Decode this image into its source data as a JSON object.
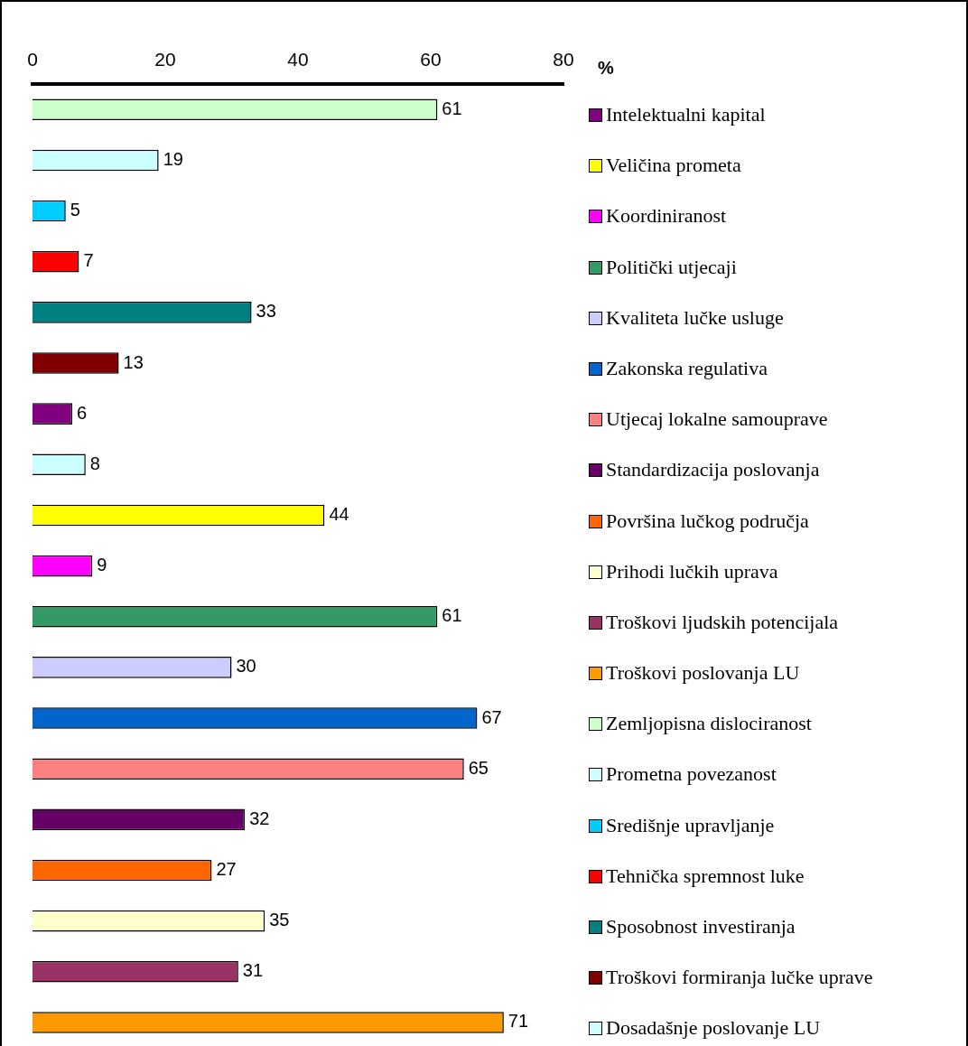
{
  "chart_data": {
    "type": "bar",
    "orientation": "horizontal",
    "stacked": true,
    "xlabel": "%",
    "xlim": [
      0,
      80
    ],
    "xticks": [
      0,
      20,
      40,
      60,
      80
    ],
    "grid": false,
    "legend": "right",
    "data_labels": true,
    "categories": [
      null,
      null,
      null,
      null,
      null,
      null,
      null,
      null,
      null,
      null,
      null,
      null,
      null,
      null,
      null,
      null,
      null,
      null,
      null
    ],
    "series": [
      {
        "name": "Intelektualni kapital",
        "color": "#800080",
        "values": [
          null,
          null,
          null,
          null,
          null,
          null,
          6,
          null,
          null,
          null,
          null,
          null,
          null,
          null,
          null,
          null,
          null,
          null,
          null
        ]
      },
      {
        "name": "Veličina prometa",
        "color": "#ffff00",
        "values": [
          null,
          null,
          null,
          null,
          null,
          null,
          null,
          null,
          44,
          null,
          null,
          null,
          null,
          null,
          null,
          null,
          null,
          null,
          null
        ]
      },
      {
        "name": "Koordiniranost",
        "color": "#ff00ff",
        "values": [
          null,
          null,
          null,
          null,
          null,
          null,
          null,
          null,
          null,
          9,
          null,
          null,
          null,
          null,
          null,
          null,
          null,
          null,
          null
        ]
      },
      {
        "name": "Politički utjecaji",
        "color": "#339966",
        "values": [
          null,
          null,
          null,
          null,
          null,
          null,
          null,
          null,
          null,
          null,
          61,
          null,
          null,
          null,
          null,
          null,
          null,
          null,
          null
        ]
      },
      {
        "name": "Kvaliteta lučke usluge",
        "color": "#ccccff",
        "values": [
          null,
          null,
          null,
          null,
          null,
          null,
          null,
          null,
          null,
          null,
          null,
          30,
          null,
          null,
          null,
          null,
          null,
          null,
          null
        ]
      },
      {
        "name": "Zakonska regulativa",
        "color": "#0066cc",
        "values": [
          null,
          null,
          null,
          null,
          null,
          null,
          null,
          null,
          null,
          null,
          null,
          null,
          67,
          null,
          null,
          null,
          null,
          null,
          null
        ]
      },
      {
        "name": "Utjecaj lokalne samouprave",
        "color": "#ff8080",
        "values": [
          null,
          null,
          null,
          null,
          null,
          null,
          null,
          null,
          null,
          null,
          null,
          null,
          null,
          65,
          null,
          null,
          null,
          null,
          null
        ]
      },
      {
        "name": "Standardizacija poslovanja",
        "color": "#660066",
        "values": [
          null,
          null,
          null,
          null,
          null,
          null,
          null,
          null,
          null,
          null,
          null,
          null,
          null,
          null,
          32,
          null,
          null,
          null,
          null
        ]
      },
      {
        "name": "Površina lučkog područja",
        "color": "#ff6600",
        "values": [
          null,
          null,
          null,
          null,
          null,
          null,
          null,
          null,
          null,
          null,
          null,
          null,
          null,
          null,
          null,
          27,
          null,
          null,
          null
        ]
      },
      {
        "name": "Prihodi lučkih uprava",
        "color": "#ffffcc",
        "values": [
          null,
          null,
          null,
          null,
          null,
          null,
          null,
          null,
          null,
          null,
          null,
          null,
          null,
          null,
          null,
          null,
          35,
          null,
          null
        ]
      },
      {
        "name": "Troškovi ljudskih potencijala",
        "color": "#993366",
        "values": [
          null,
          null,
          null,
          null,
          null,
          null,
          null,
          null,
          null,
          null,
          null,
          null,
          null,
          null,
          null,
          null,
          null,
          31,
          null
        ]
      },
      {
        "name": "Troškovi poslovanja LU",
        "color": "#ff9900",
        "values": [
          null,
          null,
          null,
          null,
          null,
          null,
          null,
          null,
          null,
          null,
          null,
          null,
          null,
          null,
          null,
          null,
          null,
          null,
          71
        ]
      },
      {
        "name": "Zemljopisna dislociranost",
        "color": "#ccffcc",
        "values": [
          61,
          null,
          null,
          null,
          null,
          null,
          null,
          null,
          null,
          null,
          null,
          null,
          null,
          null,
          null,
          null,
          null,
          null,
          null
        ]
      },
      {
        "name": "Prometna povezanost",
        "color": "#ccffff",
        "values": [
          null,
          19,
          null,
          null,
          null,
          null,
          null,
          null,
          null,
          null,
          null,
          null,
          null,
          null,
          null,
          null,
          null,
          null,
          null
        ]
      },
      {
        "name": "Središnje upravljanje",
        "color": "#00ccff",
        "values": [
          null,
          null,
          5,
          null,
          null,
          null,
          null,
          null,
          null,
          null,
          null,
          null,
          null,
          null,
          null,
          null,
          null,
          null,
          null
        ]
      },
      {
        "name": "Tehnička spremnost luke",
        "color": "#ff0000",
        "values": [
          null,
          null,
          null,
          7,
          null,
          null,
          null,
          null,
          null,
          null,
          null,
          null,
          null,
          null,
          null,
          null,
          null,
          null,
          null
        ]
      },
      {
        "name": "Sposobnost investiranja",
        "color": "#008080",
        "values": [
          null,
          null,
          null,
          null,
          33,
          null,
          null,
          null,
          null,
          null,
          null,
          null,
          null,
          null,
          null,
          null,
          null,
          null,
          null
        ]
      },
      {
        "name": "Troškovi formiranja lučke uprave",
        "color": "#800000",
        "values": [
          null,
          null,
          null,
          null,
          null,
          13,
          null,
          null,
          null,
          null,
          null,
          null,
          null,
          null,
          null,
          null,
          null,
          null,
          null
        ]
      },
      {
        "name": "Dosadašnje poslovanje LU",
        "color": "#ccffff",
        "values": [
          null,
          null,
          null,
          null,
          null,
          null,
          null,
          8,
          null,
          null,
          null,
          null,
          null,
          null,
          null,
          null,
          null,
          null,
          null
        ]
      }
    ]
  }
}
